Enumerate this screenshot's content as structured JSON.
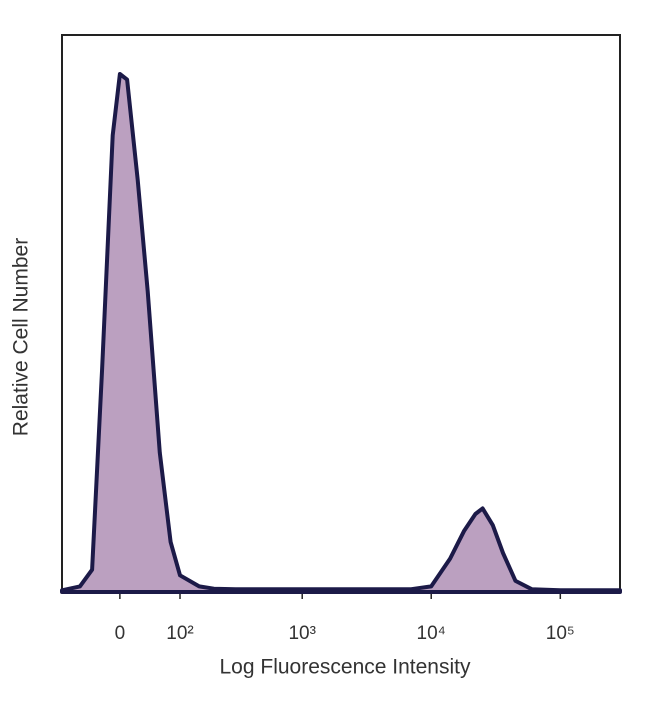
{
  "chart_data": {
    "type": "histogram-line",
    "xlabel": "Log Fluorescence Intensity",
    "ylabel": "Relative Cell Number",
    "xscale": "biexponential",
    "xlim": [
      -95,
      290000
    ],
    "ylim": [
      0,
      100
    ],
    "xticks": [
      0,
      {
        "value": 100,
        "label": "10²"
      },
      {
        "value": 1000,
        "label": "10³"
      },
      {
        "value": 10000,
        "label": "10⁴"
      },
      {
        "value": 100000,
        "label": "10⁵"
      }
    ],
    "fill_color": "#bba0c0",
    "line_color": "#1c1a48",
    "x": [
      -95,
      -60,
      -40,
      -25,
      -10,
      0,
      10,
      25,
      40,
      60,
      80,
      100,
      150,
      200,
      300,
      500,
      1000,
      2000,
      4000,
      7000,
      10000,
      14000,
      18000,
      22000,
      25000,
      30000,
      36000,
      45000,
      60000,
      100000,
      200000,
      290000
    ],
    "y": [
      0.3,
      1,
      4,
      40,
      82,
      93,
      92,
      74,
      54,
      25,
      9,
      3,
      1,
      0.6,
      0.5,
      0.5,
      0.5,
      0.5,
      0.5,
      0.5,
      1,
      6,
      11,
      14,
      15,
      12,
      7,
      2,
      0.5,
      0.3,
      0.3,
      0.3
    ]
  }
}
